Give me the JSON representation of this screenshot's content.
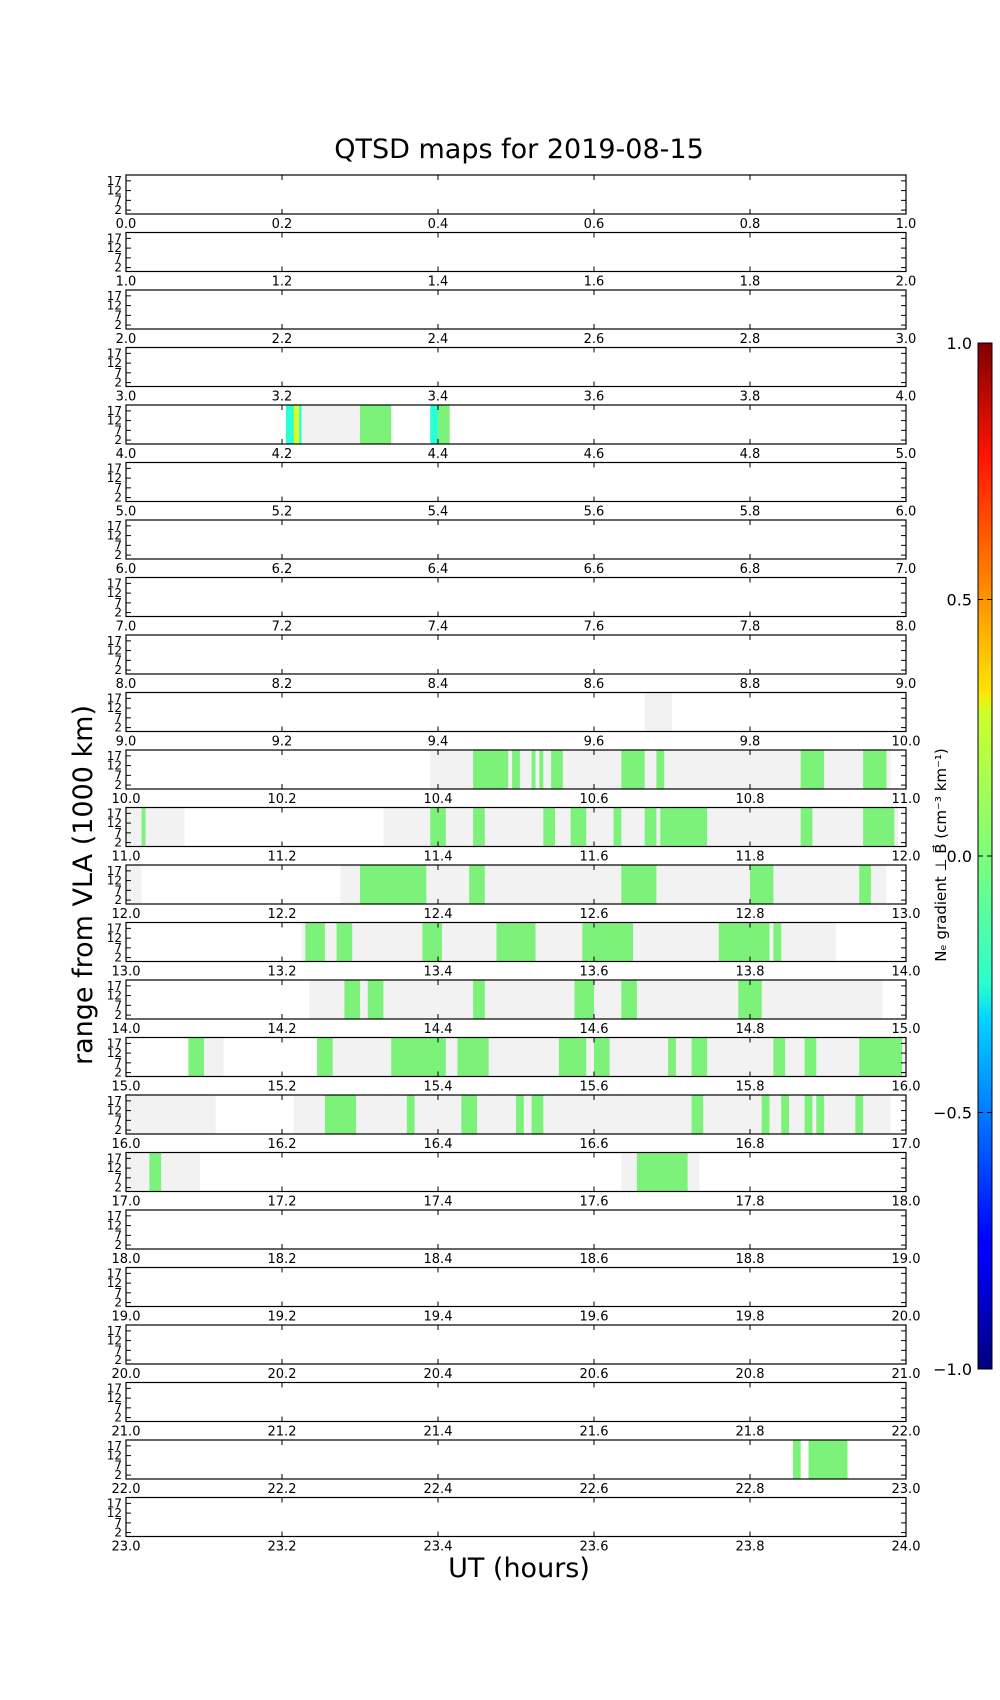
{
  "chart_data": {
    "type": "heatmap",
    "title": "QTSD maps for 2019-08-15",
    "xlabel": "UT (hours)",
    "ylabel": "range from VLA (1000 km)",
    "yticks": [
      "17",
      "12",
      "7",
      "2"
    ],
    "ylim": [
      0,
      20
    ],
    "rows": [
      {
        "range": [
          0,
          1
        ],
        "coverage": [],
        "green": [],
        "other": []
      },
      {
        "range": [
          1,
          2
        ],
        "coverage": [],
        "green": [],
        "other": []
      },
      {
        "range": [
          2,
          3
        ],
        "coverage": [],
        "green": [],
        "other": []
      },
      {
        "range": [
          3,
          4
        ],
        "coverage": [],
        "green": [],
        "other": []
      },
      {
        "range": [
          4,
          5
        ],
        "coverage": [
          [
            4.22,
            4.3
          ]
        ],
        "green": [
          [
            4.3,
            4.34
          ]
        ],
        "other": [
          [
            4.205,
            4.225,
            "cyan"
          ],
          [
            4.215,
            4.222,
            "yellow"
          ],
          [
            4.39,
            4.4,
            "cyan"
          ],
          [
            4.4,
            4.415,
            "green"
          ]
        ]
      },
      {
        "range": [
          5,
          6
        ],
        "coverage": [],
        "green": [],
        "other": []
      },
      {
        "range": [
          6,
          7
        ],
        "coverage": [],
        "green": [],
        "other": []
      },
      {
        "range": [
          7,
          8
        ],
        "coverage": [],
        "green": [],
        "other": []
      },
      {
        "range": [
          8,
          9
        ],
        "coverage": [],
        "green": [],
        "other": []
      },
      {
        "range": [
          9,
          10
        ],
        "coverage": [
          [
            9.665,
            9.7
          ]
        ],
        "green": [],
        "other": []
      },
      {
        "range": [
          10,
          11
        ],
        "coverage": [
          [
            10.39,
            10.98
          ]
        ],
        "green": [
          [
            10.445,
            10.49
          ],
          [
            10.495,
            10.505
          ],
          [
            10.52,
            10.525
          ],
          [
            10.53,
            10.535
          ],
          [
            10.545,
            10.56
          ],
          [
            10.635,
            10.665
          ],
          [
            10.68,
            10.69
          ],
          [
            10.865,
            10.895
          ],
          [
            10.945,
            10.975
          ]
        ],
        "other": []
      },
      {
        "range": [
          11,
          12
        ],
        "coverage": [
          [
            11.0,
            11.075
          ],
          [
            11.33,
            11.99
          ]
        ],
        "green": [
          [
            11.02,
            11.025
          ],
          [
            11.39,
            11.41
          ],
          [
            11.445,
            11.46
          ],
          [
            11.535,
            11.55
          ],
          [
            11.57,
            11.59
          ],
          [
            11.625,
            11.635
          ],
          [
            11.665,
            11.68
          ],
          [
            11.685,
            11.745
          ],
          [
            11.865,
            11.88
          ],
          [
            11.945,
            11.985
          ]
        ],
        "other": []
      },
      {
        "range": [
          12,
          13
        ],
        "coverage": [
          [
            12.0,
            12.02
          ],
          [
            12.275,
            12.975
          ]
        ],
        "green": [
          [
            12.3,
            12.385
          ],
          [
            12.44,
            12.46
          ],
          [
            12.635,
            12.68
          ],
          [
            12.8,
            12.83
          ],
          [
            12.94,
            12.955
          ]
        ],
        "other": []
      },
      {
        "range": [
          13,
          14
        ],
        "coverage": [
          [
            13.225,
            13.91
          ]
        ],
        "green": [
          [
            13.23,
            13.255
          ],
          [
            13.27,
            13.29
          ],
          [
            13.38,
            13.405
          ],
          [
            13.475,
            13.525
          ],
          [
            13.585,
            13.65
          ],
          [
            13.76,
            13.825
          ],
          [
            13.83,
            13.84
          ]
        ],
        "other": []
      },
      {
        "range": [
          14,
          15
        ],
        "coverage": [
          [
            14.235,
            14.97
          ]
        ],
        "green": [
          [
            14.28,
            14.3
          ],
          [
            14.31,
            14.33
          ],
          [
            14.445,
            14.46
          ],
          [
            14.575,
            14.6
          ],
          [
            14.635,
            14.655
          ],
          [
            14.785,
            14.815
          ]
        ],
        "other": []
      },
      {
        "range": [
          15,
          16
        ],
        "coverage": [
          [
            15.08,
            15.125
          ],
          [
            15.245,
            16.0
          ]
        ],
        "green": [
          [
            15.08,
            15.1
          ],
          [
            15.245,
            15.265
          ],
          [
            15.34,
            15.41
          ],
          [
            15.425,
            15.465
          ],
          [
            15.555,
            15.59
          ],
          [
            15.6,
            15.62
          ],
          [
            15.695,
            15.705
          ],
          [
            15.725,
            15.745
          ],
          [
            15.83,
            15.845
          ],
          [
            15.87,
            15.885
          ],
          [
            15.94,
            15.995
          ]
        ],
        "other": []
      },
      {
        "range": [
          16,
          17
        ],
        "coverage": [
          [
            16.0,
            16.115
          ],
          [
            16.215,
            16.98
          ]
        ],
        "green": [
          [
            16.255,
            16.295
          ],
          [
            16.36,
            16.37
          ],
          [
            16.43,
            16.45
          ],
          [
            16.5,
            16.51
          ],
          [
            16.52,
            16.535
          ],
          [
            16.725,
            16.74
          ],
          [
            16.815,
            16.825
          ],
          [
            16.84,
            16.85
          ],
          [
            16.87,
            16.88
          ],
          [
            16.885,
            16.895
          ],
          [
            16.935,
            16.945
          ]
        ],
        "other": []
      },
      {
        "range": [
          17,
          18
        ],
        "coverage": [
          [
            17.0,
            17.095
          ],
          [
            17.635,
            17.735
          ]
        ],
        "green": [
          [
            17.03,
            17.045
          ],
          [
            17.655,
            17.72
          ]
        ],
        "other": []
      },
      {
        "range": [
          18,
          19
        ],
        "coverage": [],
        "green": [],
        "other": []
      },
      {
        "range": [
          19,
          20
        ],
        "coverage": [],
        "green": [],
        "other": []
      },
      {
        "range": [
          20,
          21
        ],
        "coverage": [],
        "green": [],
        "other": []
      },
      {
        "range": [
          21,
          22
        ],
        "coverage": [],
        "green": [],
        "other": []
      },
      {
        "range": [
          22,
          23
        ],
        "coverage": [],
        "green": [
          [
            22.855,
            22.865
          ],
          [
            22.875,
            22.925
          ]
        ],
        "other": []
      },
      {
        "range": [
          23,
          24
        ],
        "coverage": [],
        "green": [],
        "other": []
      }
    ],
    "colorbar": {
      "label": "Nₑ gradient ⊥ B⃗ (cm⁻³ km⁻¹)",
      "ticks": [
        "1.0",
        "0.5",
        "0.0",
        "−0.5",
        "−1.0"
      ],
      "range": [
        -1.0,
        1.0
      ],
      "colormap": "jet"
    }
  }
}
